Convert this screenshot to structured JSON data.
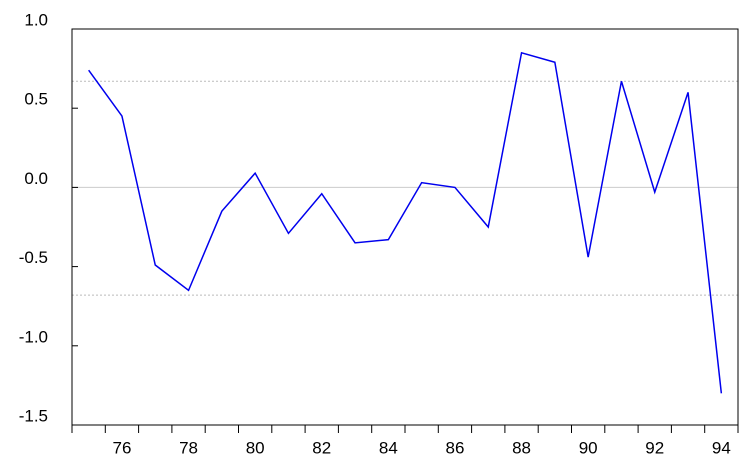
{
  "chart_data": {
    "type": "line",
    "categories": [
      null,
      "76",
      null,
      "78",
      null,
      "80",
      null,
      "82",
      null,
      "84",
      null,
      "86",
      null,
      "88",
      null,
      "90",
      null,
      "92",
      null,
      "94"
    ],
    "series": [
      {
        "color": "#0000ee",
        "values": [
          0.74,
          0.45,
          -0.49,
          -0.65,
          -0.15,
          0.09,
          -0.29,
          -0.04,
          -0.35,
          -0.33,
          0.03,
          0.0,
          -0.25,
          0.85,
          0.79,
          -0.44,
          0.67,
          -0.03,
          0.6,
          -1.3
        ]
      }
    ],
    "ylim": [
      -1.5,
      1.0
    ],
    "yticks": [
      -1.5,
      {
        "value": -1.0,
        "label": "-1.0"
      },
      -0.5,
      {
        "value": 0.0,
        "label": "0.0"
      },
      0.5,
      {
        "value": 1.0,
        "label": "1.0"
      }
    ],
    "reference_lines": [
      0.67,
      -0.68
    ]
  }
}
